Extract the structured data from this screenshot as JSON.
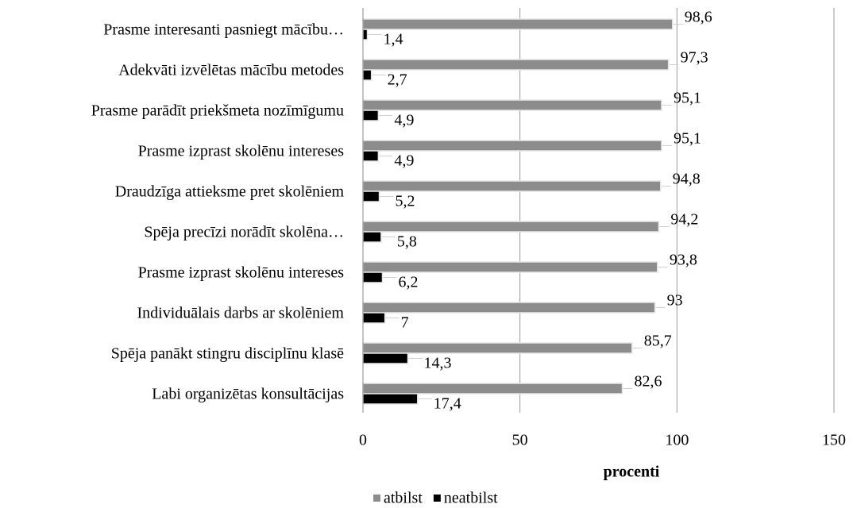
{
  "chart_data": {
    "type": "bar",
    "orientation": "horizontal",
    "x_label": "procenti",
    "categories": [
      "Prasme interesanti pasniegt mācību…",
      "Adekvāti izvēlētas mācību metodes",
      "Prasme parādīt priekšmeta nozīmīgumu",
      "Prasme izprast skolēnu intereses",
      "Draudzīga attieksme pret skolēniem",
      "Spēja precīzi norādīt skolēna…",
      "Prasme izprast skolēnu intereses",
      "Individuālais darbs ar skolēniem",
      "Spēja panākt stingru disciplīnu klasē",
      "Labi organizētas konsultācijas"
    ],
    "series": [
      {
        "name": "atbilst",
        "color": "#8c8c8c",
        "values": [
          98.6,
          97.3,
          95.1,
          95.1,
          94.8,
          94.2,
          93.8,
          93,
          85.7,
          82.6
        ],
        "value_labels": [
          "98,6",
          "97,3",
          "95,1",
          "95,1",
          "94,8",
          "94,2",
          "93,8",
          "93",
          "85,7",
          "82,6"
        ]
      },
      {
        "name": "neatbilst",
        "color": "#000000",
        "values": [
          1.4,
          2.7,
          4.9,
          4.9,
          5.2,
          5.8,
          6.2,
          7,
          14.3,
          17.4
        ],
        "value_labels": [
          "1,4",
          "2,7",
          "4,9",
          "4,9",
          "5,2",
          "5,8",
          "6,2",
          "7",
          "14,3",
          "17,4"
        ]
      }
    ],
    "xlim": [
      0,
      150
    ],
    "xticks": [
      0,
      50,
      100,
      150
    ],
    "grid": true,
    "legend": "bottom"
  }
}
